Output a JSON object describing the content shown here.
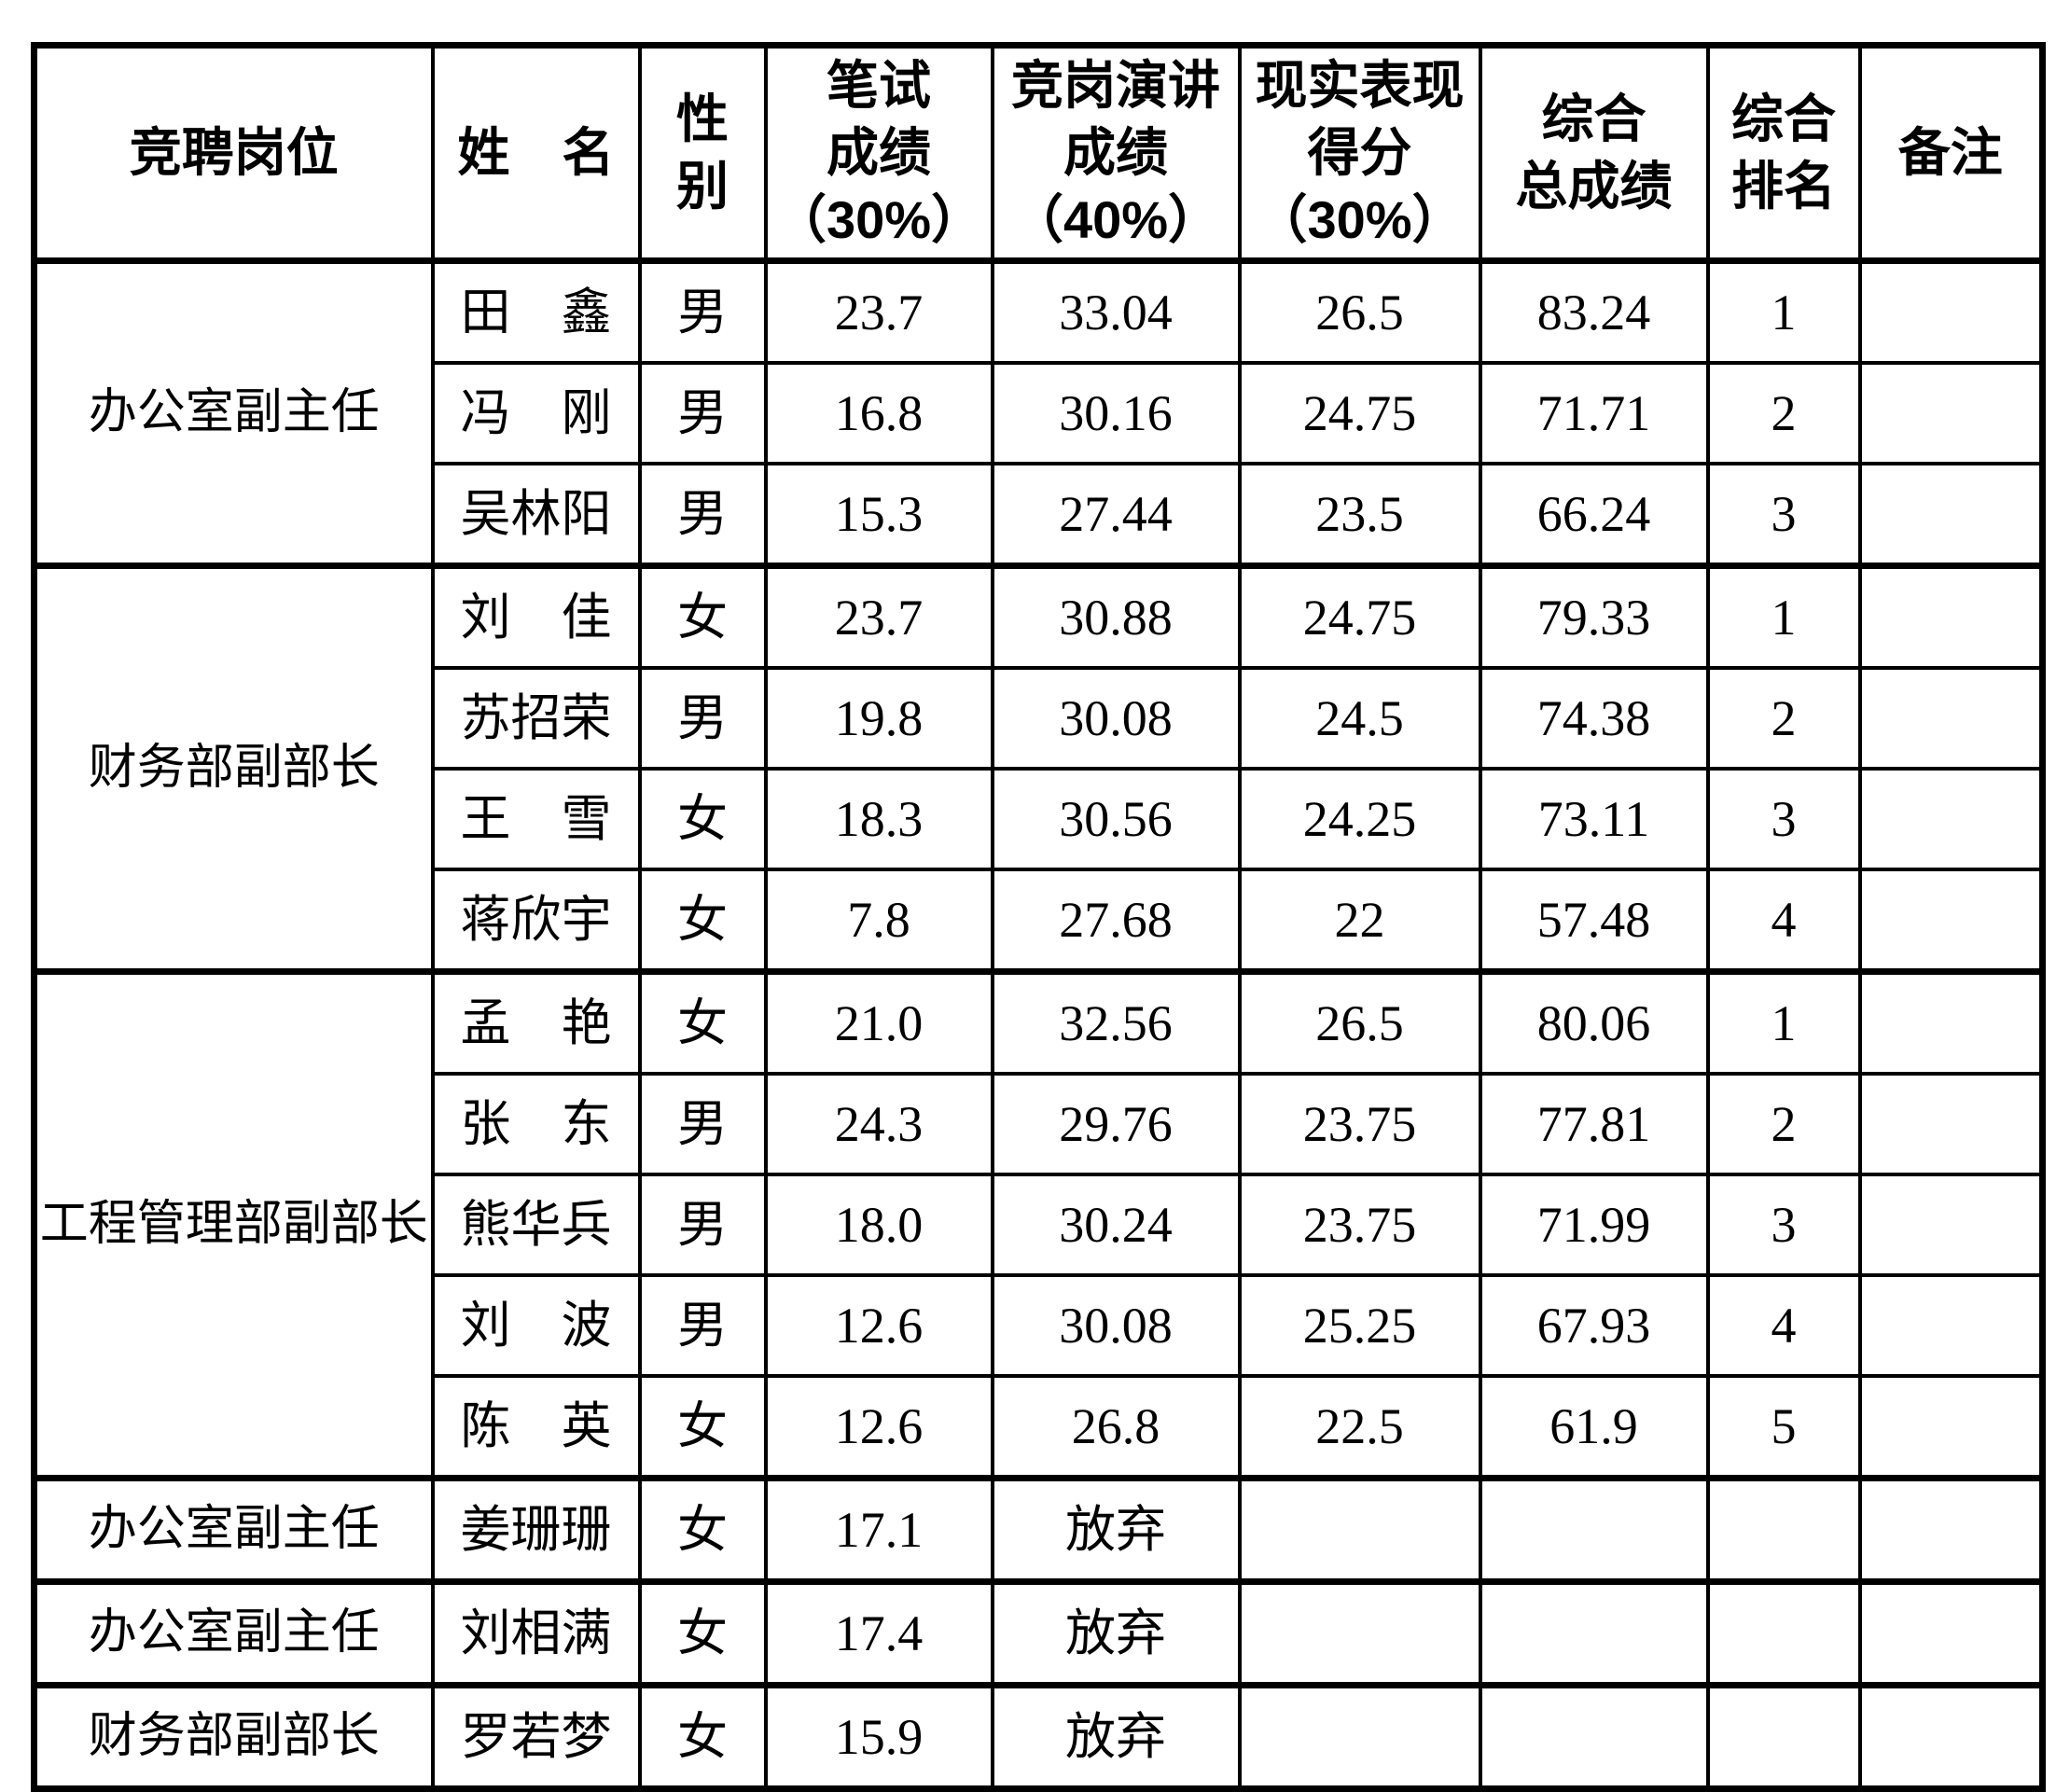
{
  "table": {
    "headers": [
      "竞聘岗位",
      "姓　名",
      "性\n别",
      "笔试\n成绩\n（30%）",
      "竞岗演讲\n成绩\n（40%）",
      "现实表现\n得分\n（30%）",
      "综合\n总成绩",
      "综合\n排名",
      "备注"
    ],
    "groups": [
      {
        "position": "办公室副主任",
        "members": [
          {
            "name": "田　鑫",
            "gender": "男",
            "written": "23.7",
            "speech": "33.04",
            "reality": "26.5",
            "total": "83.24",
            "rank": "1",
            "note": ""
          },
          {
            "name": "冯　刚",
            "gender": "男",
            "written": "16.8",
            "speech": "30.16",
            "reality": "24.75",
            "total": "71.71",
            "rank": "2",
            "note": ""
          },
          {
            "name": "吴林阳",
            "gender": "男",
            "written": "15.3",
            "speech": "27.44",
            "reality": "23.5",
            "total": "66.24",
            "rank": "3",
            "note": ""
          }
        ]
      },
      {
        "position": "财务部副部长",
        "members": [
          {
            "name": "刘　佳",
            "gender": "女",
            "written": "23.7",
            "speech": "30.88",
            "reality": "24.75",
            "total": "79.33",
            "rank": "1",
            "note": ""
          },
          {
            "name": "苏招荣",
            "gender": "男",
            "written": "19.8",
            "speech": "30.08",
            "reality": "24.5",
            "total": "74.38",
            "rank": "2",
            "note": ""
          },
          {
            "name": "王　雪",
            "gender": "女",
            "written": "18.3",
            "speech": "30.56",
            "reality": "24.25",
            "total": "73.11",
            "rank": "3",
            "note": ""
          },
          {
            "name": "蒋欣宇",
            "gender": "女",
            "written": "7.8",
            "speech": "27.68",
            "reality": "22",
            "total": "57.48",
            "rank": "4",
            "note": ""
          }
        ]
      },
      {
        "position": "工程管理部副部长",
        "members": [
          {
            "name": "孟　艳",
            "gender": "女",
            "written": "21.0",
            "speech": "32.56",
            "reality": "26.5",
            "total": "80.06",
            "rank": "1",
            "note": ""
          },
          {
            "name": "张　东",
            "gender": "男",
            "written": "24.3",
            "speech": "29.76",
            "reality": "23.75",
            "total": "77.81",
            "rank": "2",
            "note": ""
          },
          {
            "name": "熊华兵",
            "gender": "男",
            "written": "18.0",
            "speech": "30.24",
            "reality": "23.75",
            "total": "71.99",
            "rank": "3",
            "note": ""
          },
          {
            "name": "刘　波",
            "gender": "男",
            "written": "12.6",
            "speech": "30.08",
            "reality": "25.25",
            "total": "67.93",
            "rank": "4",
            "note": ""
          },
          {
            "name": "陈　英",
            "gender": "女",
            "written": "12.6",
            "speech": "26.8",
            "reality": "22.5",
            "total": "61.9",
            "rank": "5",
            "note": ""
          }
        ]
      },
      {
        "position": "办公室副主任",
        "members": [
          {
            "name": "姜珊珊",
            "gender": "女",
            "written": "17.1",
            "speech": "放弃",
            "reality": "",
            "total": "",
            "rank": "",
            "note": ""
          }
        ]
      },
      {
        "position": "办公室副主任",
        "members": [
          {
            "name": "刘相满",
            "gender": "女",
            "written": "17.4",
            "speech": "放弃",
            "reality": "",
            "total": "",
            "rank": "",
            "note": ""
          }
        ]
      },
      {
        "position": "财务部副部长",
        "members": [
          {
            "name": "罗若梦",
            "gender": "女",
            "written": "15.9",
            "speech": "放弃",
            "reality": "",
            "total": "",
            "rank": "",
            "note": ""
          }
        ]
      }
    ]
  }
}
